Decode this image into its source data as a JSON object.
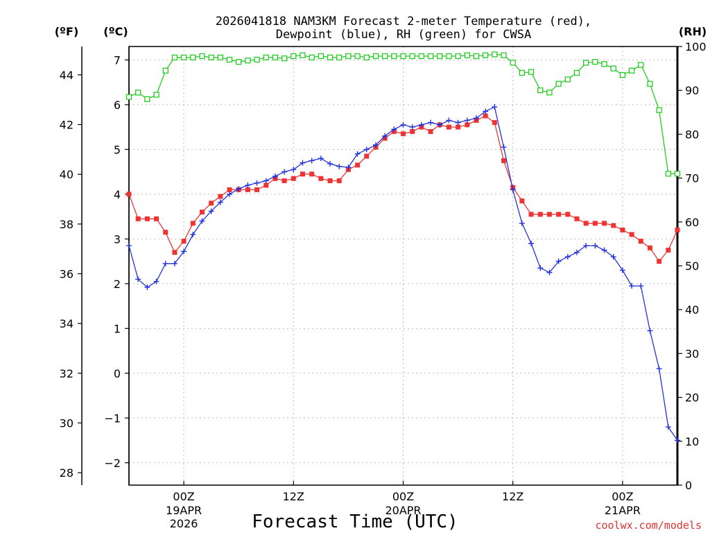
{
  "chart_data": {
    "type": "line",
    "title_line1": "2026041818 NAM3KM Forecast 2-meter Temperature (red),",
    "title_line2": "Dewpoint (blue), RH (green) for CWSA",
    "xlabel": "Forecast Time (UTC)",
    "watermark": "coolwx.com/models",
    "unit_labels": {
      "fahrenheit": "(ºF)",
      "celsius": "(ºC)",
      "rh": "(RH)"
    },
    "x_hours_range": [
      0,
      60
    ],
    "x_ticks": [
      {
        "hour": 6,
        "label": "00Z",
        "sub1": "19APR",
        "sub2": "2026"
      },
      {
        "hour": 18,
        "label": "12Z",
        "sub1": "",
        "sub2": ""
      },
      {
        "hour": 30,
        "label": "00Z",
        "sub1": "20APR",
        "sub2": ""
      },
      {
        "hour": 42,
        "label": "12Z",
        "sub1": "",
        "sub2": ""
      },
      {
        "hour": 54,
        "label": "00Z",
        "sub1": "21APR",
        "sub2": ""
      }
    ],
    "celsius_axis": {
      "ylim": [
        -2.5,
        7.3
      ],
      "ticks": [
        "-2",
        "-1",
        "0",
        "1",
        "2",
        "3",
        "4",
        "5",
        "6",
        "7"
      ]
    },
    "fahrenheit_axis": {
      "ticks": [
        "28",
        "30",
        "32",
        "34",
        "36",
        "38",
        "40",
        "42",
        "44"
      ]
    },
    "rh_axis": {
      "ylim": [
        0,
        100
      ],
      "ticks": [
        "0",
        "10",
        "20",
        "30",
        "40",
        "50",
        "60",
        "70",
        "80",
        "90",
        "100"
      ]
    },
    "series": [
      {
        "name": "Temperature",
        "unit": "C",
        "color": "#ee3333",
        "marker": "filled-square",
        "values": [
          4.0,
          3.45,
          3.45,
          3.45,
          3.15,
          2.7,
          2.95,
          3.35,
          3.6,
          3.8,
          3.95,
          4.1,
          4.1,
          4.1,
          4.1,
          4.2,
          4.35,
          4.3,
          4.35,
          4.45,
          4.45,
          4.35,
          4.3,
          4.3,
          4.55,
          4.65,
          4.85,
          5.05,
          5.25,
          5.4,
          5.35,
          5.4,
          5.5,
          5.4,
          5.55,
          5.5,
          5.5,
          5.55,
          5.65,
          5.75,
          5.6,
          4.75,
          4.15,
          3.85,
          3.55,
          3.55,
          3.55,
          3.55,
          3.55,
          3.45,
          3.35,
          3.35,
          3.35,
          3.3,
          3.2,
          3.1,
          2.95,
          2.8,
          2.5,
          2.75,
          3.2
        ]
      },
      {
        "name": "Dewpoint",
        "unit": "C",
        "color": "#2233dd",
        "marker": "plus",
        "values": [
          2.85,
          2.1,
          1.92,
          2.05,
          2.45,
          2.45,
          2.72,
          3.1,
          3.4,
          3.62,
          3.82,
          4.0,
          4.12,
          4.2,
          4.25,
          4.3,
          4.4,
          4.5,
          4.55,
          4.7,
          4.75,
          4.8,
          4.68,
          4.62,
          4.6,
          4.9,
          5.0,
          5.1,
          5.3,
          5.45,
          5.55,
          5.5,
          5.55,
          5.6,
          5.55,
          5.65,
          5.6,
          5.65,
          5.7,
          5.85,
          5.95,
          5.05,
          4.1,
          3.35,
          2.9,
          2.35,
          2.25,
          2.5,
          2.6,
          2.7,
          2.85,
          2.85,
          2.75,
          2.6,
          2.3,
          1.95,
          1.95,
          0.95,
          0.1,
          -1.2,
          -1.5
        ]
      },
      {
        "name": "RH",
        "unit": "%",
        "color": "#22cc22",
        "marker": "open-square",
        "values": [
          88.5,
          89.5,
          88.0,
          89.0,
          94.5,
          97.5,
          97.5,
          97.5,
          97.8,
          97.5,
          97.5,
          97.0,
          96.5,
          96.8,
          97.0,
          97.5,
          97.5,
          97.3,
          97.8,
          98.0,
          97.5,
          97.8,
          97.5,
          97.5,
          97.8,
          97.8,
          97.5,
          97.8,
          97.8,
          97.8,
          97.8,
          97.8,
          97.8,
          97.8,
          97.8,
          97.8,
          97.8,
          98.0,
          97.8,
          98.0,
          98.2,
          98.0,
          96.3,
          94.0,
          94.2,
          90.0,
          89.5,
          91.5,
          92.5,
          94.0,
          96.3,
          96.5,
          96.0,
          95.0,
          93.5,
          94.5,
          95.8,
          91.5,
          85.5,
          71.0,
          71.0
        ]
      }
    ],
    "colors": {
      "frame": "#000000",
      "grid": "#bbbbbb",
      "watermark": "#dd3333"
    }
  }
}
